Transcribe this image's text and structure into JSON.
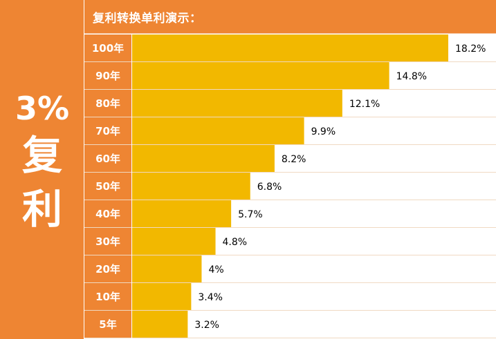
{
  "side": {
    "pct": "3%",
    "char1": "复",
    "char2": "利"
  },
  "header": {
    "title": "复利转换单利演示："
  },
  "colors": {
    "accent": "#ee8533",
    "bar": "#f2b800",
    "row_border": "#f0d9c2"
  },
  "chart_data": {
    "type": "bar",
    "orientation": "horizontal",
    "title": "复利转换单利演示：",
    "categories": [
      "100年",
      "90年",
      "80年",
      "70年",
      "60年",
      "50年",
      "40年",
      "30年",
      "20年",
      "10年",
      "5年"
    ],
    "values": [
      18.2,
      14.8,
      12.1,
      9.9,
      8.2,
      6.8,
      5.7,
      4.8,
      4,
      3.4,
      3.2
    ],
    "value_labels": [
      "18.2%",
      "14.8%",
      "12.1%",
      "9.9%",
      "8.2%",
      "6.8%",
      "5.7%",
      "4.8%",
      "4%",
      "3.4%",
      "3.2%"
    ],
    "unit": "%",
    "grid": false,
    "legend": "none"
  }
}
